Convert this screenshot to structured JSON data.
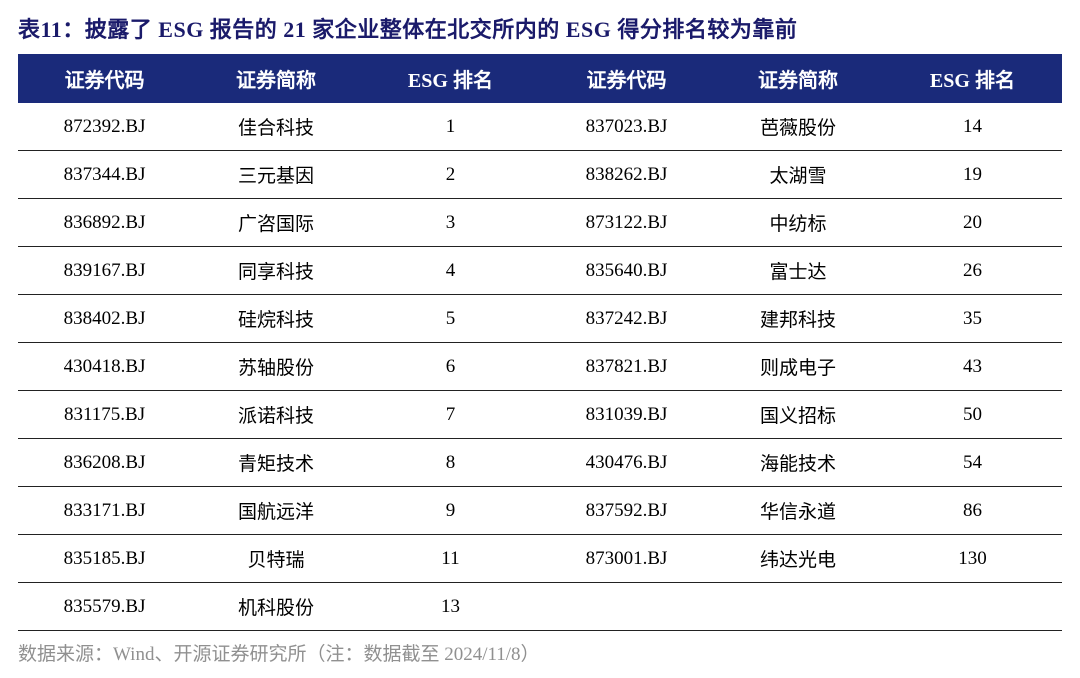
{
  "title": "表11：披露了 ESG 报告的 21 家企业整体在北交所内的 ESG 得分排名较为靠前",
  "columns": [
    "证券代码",
    "证券简称",
    "ESG 排名",
    "证券代码",
    "证券简称",
    "ESG 排名"
  ],
  "rows": [
    [
      "872392.BJ",
      "佳合科技",
      "1",
      "837023.BJ",
      "芭薇股份",
      "14"
    ],
    [
      "837344.BJ",
      "三元基因",
      "2",
      "838262.BJ",
      "太湖雪",
      "19"
    ],
    [
      "836892.BJ",
      "广咨国际",
      "3",
      "873122.BJ",
      "中纺标",
      "20"
    ],
    [
      "839167.BJ",
      "同享科技",
      "4",
      "835640.BJ",
      "富士达",
      "26"
    ],
    [
      "838402.BJ",
      "硅烷科技",
      "5",
      "837242.BJ",
      "建邦科技",
      "35"
    ],
    [
      "430418.BJ",
      "苏轴股份",
      "6",
      "837821.BJ",
      "则成电子",
      "43"
    ],
    [
      "831175.BJ",
      "派诺科技",
      "7",
      "831039.BJ",
      "国义招标",
      "50"
    ],
    [
      "836208.BJ",
      "青矩技术",
      "8",
      "430476.BJ",
      "海能技术",
      "54"
    ],
    [
      "833171.BJ",
      "国航远洋",
      "9",
      "837592.BJ",
      "华信永道",
      "86"
    ],
    [
      "835185.BJ",
      "贝特瑞",
      "11",
      "873001.BJ",
      "纬达光电",
      "130"
    ],
    [
      "835579.BJ",
      "机科股份",
      "13",
      "",
      "",
      ""
    ]
  ],
  "footnote": "数据来源：Wind、开源证券研究所（注：数据截至 2024/11/8）",
  "colors": {
    "title": "#1c2270",
    "header_bg": "#1a2a7a",
    "header_text": "#ffffff",
    "body_text": "#000000",
    "border": "#222222",
    "footnote": "#909090",
    "background": "#ffffff"
  },
  "table_type": "table",
  "col_widths_pct": [
    16.6,
    16.6,
    16.6,
    16.6,
    16.6,
    16.6
  ]
}
